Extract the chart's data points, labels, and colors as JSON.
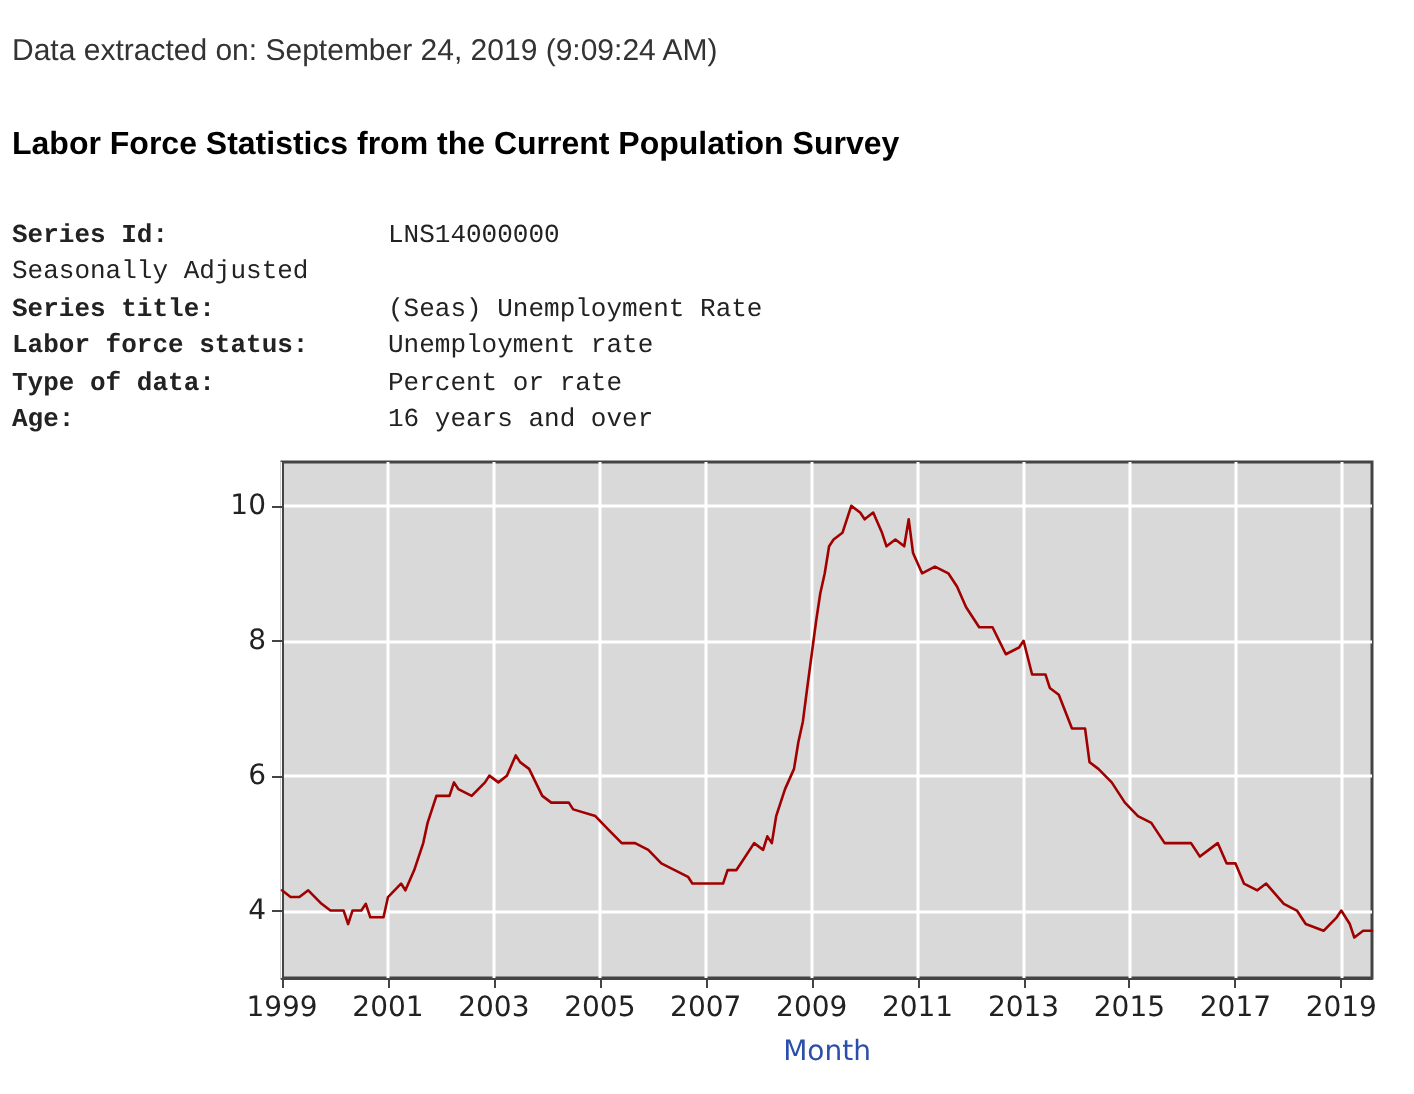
{
  "chart_data": {
    "type": "line",
    "title": "Labor Force Statistics from the Current Population Survey",
    "xlabel": "Month",
    "annotations": [
      "Data extracted on: September 24, 2019 (9:09:24 AM)",
      "Series Id: LNS14000000",
      "Seasonally Adjusted",
      "Series title: (Seas) Unemployment Rate",
      "Labor force status: Unemployment rate",
      "Type of data: Percent or rate",
      "Age: 16 years and over"
    ],
    "x": [
      "1999-01",
      "1999-03",
      "1999-05",
      "1999-07",
      "1999-10",
      "1999-12",
      "2000-01",
      "2000-03",
      "2000-04",
      "2000-05",
      "2000-07",
      "2000-08",
      "2000-09",
      "2000-12",
      "2001-01",
      "2001-04",
      "2001-05",
      "2001-07",
      "2001-09",
      "2001-10",
      "2001-12",
      "2002-03",
      "2002-04",
      "2002-05",
      "2002-08",
      "2002-11",
      "2002-12",
      "2003-02",
      "2003-04",
      "2003-06",
      "2003-07",
      "2003-09",
      "2003-12",
      "2004-02",
      "2004-04",
      "2004-06",
      "2004-07",
      "2004-12",
      "2005-03",
      "2005-06",
      "2005-09",
      "2005-12",
      "2006-03",
      "2006-06",
      "2006-09",
      "2006-10",
      "2006-12",
      "2007-03",
      "2007-05",
      "2007-06",
      "2007-08",
      "2007-09",
      "2007-12",
      "2008-02",
      "2008-03",
      "2008-04",
      "2008-05",
      "2008-07",
      "2008-09",
      "2008-10",
      "2008-11",
      "2008-12",
      "2009-01",
      "2009-02",
      "2009-03",
      "2009-04",
      "2009-05",
      "2009-06",
      "2009-08",
      "2009-10",
      "2009-12",
      "2010-01",
      "2010-03",
      "2010-05",
      "2010-06",
      "2010-08",
      "2010-10",
      "2010-11",
      "2010-12",
      "2011-02",
      "2011-05",
      "2011-08",
      "2011-10",
      "2011-12",
      "2012-03",
      "2012-06",
      "2012-09",
      "2012-12",
      "2013-01",
      "2013-03",
      "2013-06",
      "2013-07",
      "2013-09",
      "2013-12",
      "2014-03",
      "2014-04",
      "2014-06",
      "2014-09",
      "2014-12",
      "2015-03",
      "2015-06",
      "2015-09",
      "2015-12",
      "2016-03",
      "2016-05",
      "2016-07",
      "2016-09",
      "2016-11",
      "2017-01",
      "2017-03",
      "2017-06",
      "2017-08",
      "2017-12",
      "2018-03",
      "2018-05",
      "2018-09",
      "2018-12",
      "2019-01",
      "2019-03",
      "2019-04",
      "2019-06",
      "2019-08"
    ],
    "series": [
      {
        "color": "#a00000",
        "values": [
          4.3,
          4.2,
          4.2,
          4.3,
          4.1,
          4.0,
          4.0,
          4.0,
          3.8,
          4.0,
          4.0,
          4.1,
          3.9,
          3.9,
          4.2,
          4.4,
          4.3,
          4.6,
          5.0,
          5.3,
          5.7,
          5.7,
          5.9,
          5.8,
          5.7,
          5.9,
          6.0,
          5.9,
          6.0,
          6.3,
          6.2,
          6.1,
          5.7,
          5.6,
          5.6,
          5.6,
          5.5,
          5.4,
          5.2,
          5.0,
          5.0,
          4.9,
          4.7,
          4.6,
          4.5,
          4.4,
          4.4,
          4.4,
          4.4,
          4.6,
          4.6,
          4.7,
          5.0,
          4.9,
          5.1,
          5.0,
          5.4,
          5.8,
          6.1,
          6.5,
          6.8,
          7.3,
          7.8,
          8.3,
          8.7,
          9.0,
          9.4,
          9.5,
          9.6,
          10.0,
          9.9,
          9.8,
          9.9,
          9.6,
          9.4,
          9.5,
          9.4,
          9.8,
          9.3,
          9.0,
          9.1,
          9.0,
          8.8,
          8.5,
          8.2,
          8.2,
          7.8,
          7.9,
          8.0,
          7.5,
          7.5,
          7.3,
          7.2,
          6.7,
          6.7,
          6.2,
          6.1,
          5.9,
          5.6,
          5.4,
          5.3,
          5.0,
          5.0,
          5.0,
          4.8,
          4.9,
          5.0,
          4.7,
          4.7,
          4.4,
          4.3,
          4.4,
          4.1,
          4.0,
          3.8,
          3.7,
          3.9,
          4.0,
          3.8,
          3.6,
          3.7,
          3.7
        ]
      }
    ],
    "xlim": [
      "1999-01",
      "2019-08"
    ],
    "xticks": [
      "1999",
      "2001",
      "2003",
      "2005",
      "2007",
      "2009",
      "2011",
      "2013",
      "2015",
      "2017",
      "2019"
    ],
    "ylim": [
      3,
      10.65
    ],
    "yticks": [
      4,
      6,
      8,
      10
    ],
    "grid": true,
    "marker": "none",
    "line_style": "solid"
  }
}
